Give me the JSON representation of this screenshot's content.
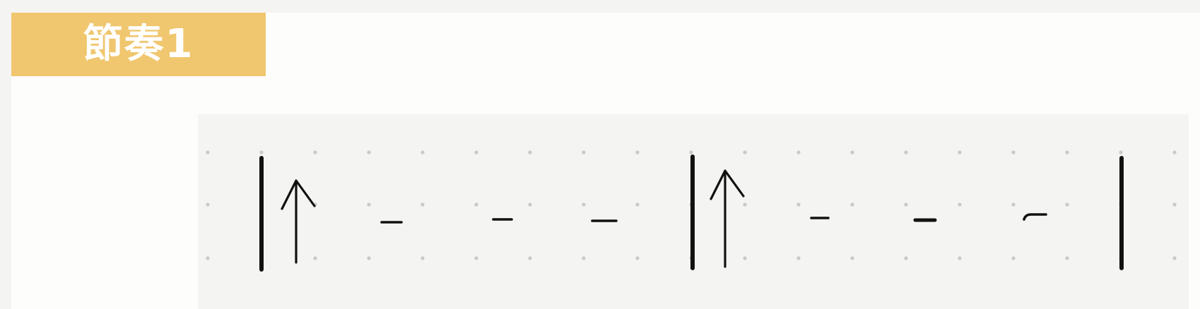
{
  "title": {
    "text": "節奏1",
    "background_color": "#f0c66e"
  },
  "rhythm": {
    "description_measures": [
      [
        "up-arrow",
        "rest",
        "rest",
        "rest"
      ],
      [
        "up-arrow",
        "rest",
        "rest",
        "rest"
      ]
    ],
    "ink_color": "#111111",
    "grid_dot_color": "#c9c9c5"
  }
}
